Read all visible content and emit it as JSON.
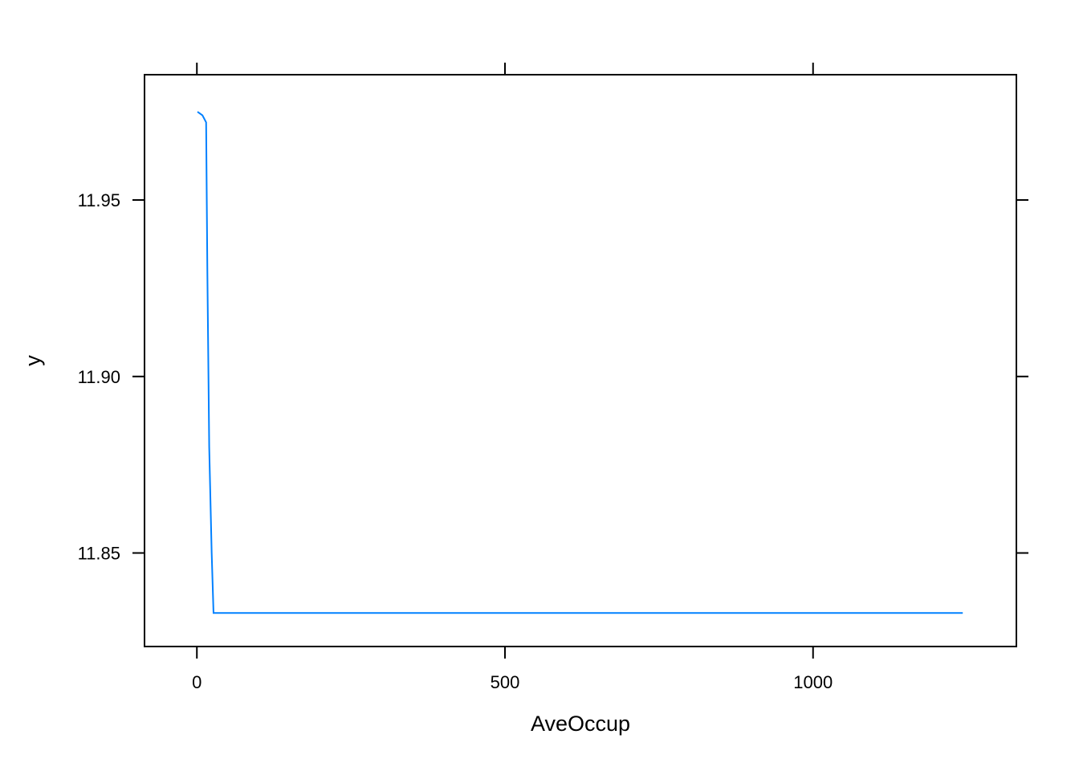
{
  "chart_data": {
    "type": "line",
    "title": "",
    "xlabel": "AveOccup",
    "ylabel": "y",
    "xlim": [
      -85,
      1330
    ],
    "ylim": [
      11.8235,
      11.9855
    ],
    "x_ticks": [
      0,
      500,
      1000
    ],
    "x_tick_labels": [
      "0",
      "500",
      "1000"
    ],
    "y_ticks": [
      11.85,
      11.9,
      11.95
    ],
    "y_tick_labels": [
      "11.85",
      "11.90",
      "11.95"
    ],
    "grid": false,
    "legend": "none",
    "series_color": "#0080ff",
    "series": [
      {
        "x": [
          1,
          9,
          15,
          17,
          20,
          24,
          27,
          1243
        ],
        "y": [
          11.975,
          11.974,
          11.972,
          11.93,
          11.88,
          11.85,
          11.833,
          11.833
        ]
      }
    ]
  }
}
